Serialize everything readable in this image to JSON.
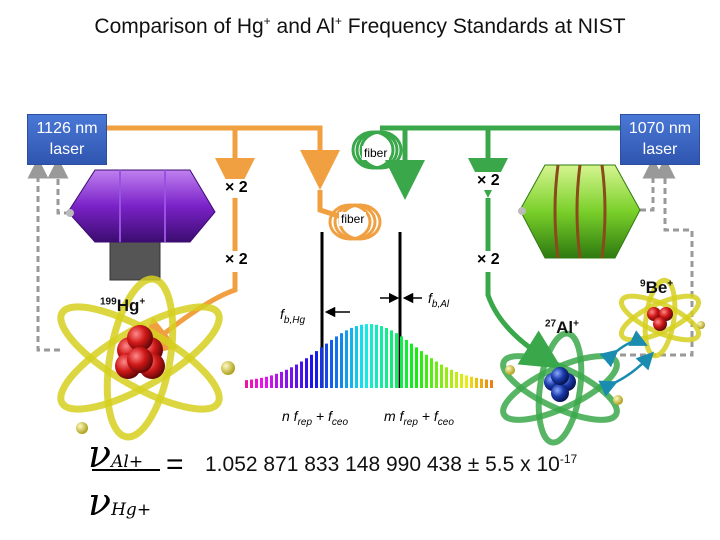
{
  "title_prefix": "Comparison of Hg",
  "title_mid": " and Al",
  "title_suffix": " Frequency Standards at NIST",
  "plus": "+",
  "lasers": {
    "left_line1": "1126 nm",
    "left_line2": "laser",
    "right_line1": "1070 nm",
    "right_line2": "laser"
  },
  "labels": {
    "fiber_top": "fiber",
    "fiber_mid": "fiber",
    "x2": "× 2",
    "hg_mass": "199",
    "hg_sym": "Hg",
    "al_mass": "27",
    "al_sym": "Al",
    "be_mass": "9",
    "be_sym": "Be",
    "fb_hg_f": "f",
    "fb_hg_sub": "b,Hg",
    "fb_al_f": "f",
    "fb_al_sub": "b,Al",
    "n_comb": "n f",
    "m_comb": "m f",
    "rep": "rep",
    "plus_f": " + f",
    "ceo": "ceo"
  },
  "ratio": {
    "num_nu": "ν",
    "num_sub": "Al+",
    "den_nu": "ν",
    "den_sub": "Hg+",
    "equals": "=",
    "value_text": "1.052 871 833 148 990 438 ± 5.5 x 10",
    "exponent": "-17"
  },
  "colors": {
    "hg_beam": "#f0a040",
    "al_beam": "#3aa84a",
    "laser_box": "#3a66c4",
    "hg_trap": "#7a22c8",
    "al_trap": "#7ad02a",
    "orbit": "#d6d020",
    "atom_red": "#d01818",
    "atom_blue": "#1a3aa8",
    "dashed": "#999999",
    "ion_arrow": "#1a8cb0"
  }
}
